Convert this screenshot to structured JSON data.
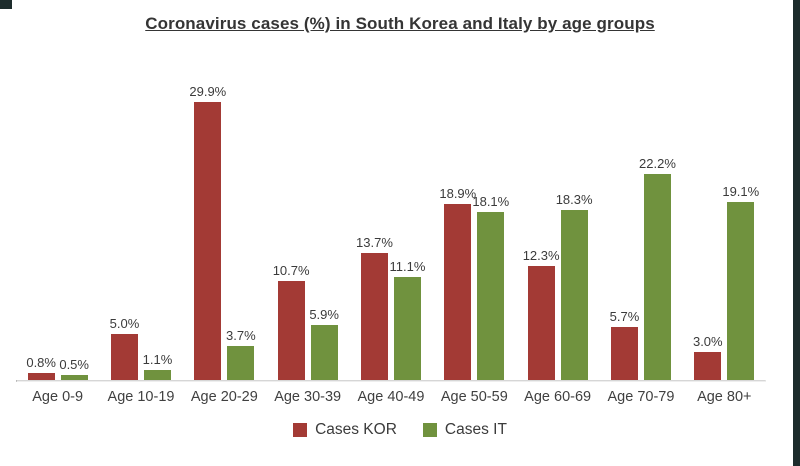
{
  "window": {
    "edge_color": "#1d2c2c"
  },
  "chart_data": {
    "type": "bar",
    "title": "Coronavirus cases (%) in South Korea and Italy by age groups",
    "categories": [
      "Age 0-9",
      "Age 10-19",
      "Age 20-29",
      "Age 30-39",
      "Age 40-49",
      "Age 50-59",
      "Age 60-69",
      "Age 70-79",
      "Age 80+"
    ],
    "series": [
      {
        "name": "Cases KOR",
        "color": "#a33a35",
        "values": [
          0.8,
          5.0,
          29.9,
          10.7,
          13.7,
          18.9,
          12.3,
          5.7,
          3.0
        ]
      },
      {
        "name": "Cases IT",
        "color": "#70923e",
        "values": [
          0.5,
          1.1,
          3.7,
          5.9,
          11.1,
          18.1,
          18.3,
          22.2,
          19.1
        ]
      }
    ],
    "value_suffix": "%",
    "data_labels": true,
    "grid": false,
    "y_axis_visible": false,
    "legend_position": "bottom",
    "ylim": [
      0,
      30
    ]
  }
}
